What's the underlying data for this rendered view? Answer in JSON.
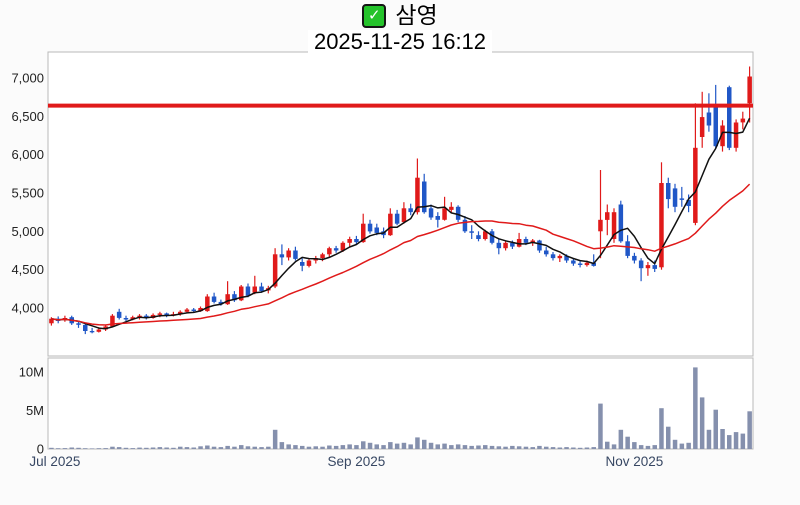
{
  "header": {
    "checkbox_glyph": "✓",
    "symbol": "삼영",
    "timestamp": "2025-11-25 16:12"
  },
  "chart_data": {
    "type": "candlestick",
    "title": "삼영",
    "subtitle": "2025-11-25 16:12",
    "legend": "none",
    "grid": false,
    "price_axis": {
      "min": 3600,
      "max": 7200
    },
    "price_ticks": [
      {
        "value": 7000,
        "label": "7,000"
      },
      {
        "value": 6500,
        "label": "6,500"
      },
      {
        "value": 6000,
        "label": "6,000"
      },
      {
        "value": 5500,
        "label": "5,500"
      },
      {
        "value": 5000,
        "label": "5,000"
      },
      {
        "value": 4500,
        "label": "4,500"
      },
      {
        "value": 4000,
        "label": "4,000"
      }
    ],
    "volume_axis": {
      "min": 0,
      "max": 11,
      "unit": "M"
    },
    "volume_ticks": [
      {
        "value": 10,
        "label": "10M"
      },
      {
        "value": 5,
        "label": "5M"
      },
      {
        "value": 0,
        "label": "0"
      }
    ],
    "x_ticks": [
      {
        "index": 0,
        "label": "Jul 2025",
        "align": "left"
      },
      {
        "index": 45,
        "label": "Sep 2025",
        "align": "center"
      },
      {
        "index": 86,
        "label": "Nov 2025",
        "align": "center"
      }
    ],
    "annotation_line": {
      "value": 6640,
      "color": "#e01a1a",
      "width": 4
    },
    "moving_averages": [
      {
        "name": "short-ma",
        "period": 5,
        "color": "#111111"
      },
      {
        "name": "long-ma",
        "period": 20,
        "color": "#e01a1a"
      }
    ],
    "colors": {
      "up": "#e01a1a",
      "down": "#2057c7",
      "volume": "#8590ad",
      "panel_border": "#b9b9b9",
      "panel_bg": "#ffffff"
    },
    "candle_format": [
      "open",
      "high",
      "low",
      "close",
      "volume_millions"
    ],
    "candles": [
      [
        3800,
        3880,
        3770,
        3860,
        0.15
      ],
      [
        3860,
        3890,
        3800,
        3830,
        0.1
      ],
      [
        3840,
        3900,
        3820,
        3870,
        0.12
      ],
      [
        3880,
        3900,
        3780,
        3800,
        0.2
      ],
      [
        3800,
        3830,
        3740,
        3780,
        0.15
      ],
      [
        3780,
        3800,
        3660,
        3700,
        0.1
      ],
      [
        3700,
        3740,
        3670,
        3690,
        0.08
      ],
      [
        3690,
        3750,
        3680,
        3720,
        0.1
      ],
      [
        3720,
        3780,
        3700,
        3760,
        0.12
      ],
      [
        3760,
        3920,
        3750,
        3900,
        0.3
      ],
      [
        3950,
        3990,
        3850,
        3870,
        0.25
      ],
      [
        3870,
        3900,
        3830,
        3850,
        0.15
      ],
      [
        3850,
        3900,
        3840,
        3880,
        0.12
      ],
      [
        3880,
        3920,
        3850,
        3900,
        0.18
      ],
      [
        3900,
        3920,
        3850,
        3870,
        0.15
      ],
      [
        3870,
        3930,
        3860,
        3910,
        0.2
      ],
      [
        3910,
        3950,
        3880,
        3930,
        0.25
      ],
      [
        3930,
        3940,
        3880,
        3900,
        0.2
      ],
      [
        3900,
        3950,
        3890,
        3920,
        0.15
      ],
      [
        3920,
        3970,
        3900,
        3950,
        0.3
      ],
      [
        3950,
        4000,
        3930,
        3980,
        0.25
      ],
      [
        3980,
        4000,
        3940,
        3960,
        0.2
      ],
      [
        3960,
        4020,
        3950,
        4000,
        0.35
      ],
      [
        3960,
        4180,
        3950,
        4150,
        0.45
      ],
      [
        4150,
        4200,
        4060,
        4080,
        0.3
      ],
      [
        4080,
        4110,
        4030,
        4050,
        0.25
      ],
      [
        4050,
        4350,
        4040,
        4180,
        0.4
      ],
      [
        4180,
        4220,
        4080,
        4100,
        0.3
      ],
      [
        4100,
        4300,
        4090,
        4280,
        0.5
      ],
      [
        4280,
        4320,
        4140,
        4160,
        0.35
      ],
      [
        4200,
        4420,
        4180,
        4280,
        0.3
      ],
      [
        4280,
        4330,
        4200,
        4220,
        0.25
      ],
      [
        4230,
        4290,
        4190,
        4260,
        0.3
      ],
      [
        4280,
        4780,
        4260,
        4700,
        2.5
      ],
      [
        4700,
        4830,
        4560,
        4660,
        0.9
      ],
      [
        4660,
        4780,
        4620,
        4750,
        0.6
      ],
      [
        4750,
        4800,
        4620,
        4640,
        0.5
      ],
      [
        4600,
        4650,
        4480,
        4550,
        0.4
      ],
      [
        4550,
        4650,
        4530,
        4620,
        0.3
      ],
      [
        4620,
        4680,
        4580,
        4650,
        0.35
      ],
      [
        4650,
        4720,
        4610,
        4700,
        0.3
      ],
      [
        4700,
        4800,
        4660,
        4780,
        0.45
      ],
      [
        4780,
        4810,
        4720,
        4750,
        0.4
      ],
      [
        4750,
        4870,
        4730,
        4850,
        0.5
      ],
      [
        4850,
        4930,
        4800,
        4900,
        0.6
      ],
      [
        4900,
        4940,
        4830,
        4860,
        0.5
      ],
      [
        4860,
        5230,
        4850,
        5100,
        1.0
      ],
      [
        5100,
        5150,
        4970,
        5000,
        0.8
      ],
      [
        5050,
        5100,
        4950,
        4980,
        0.6
      ],
      [
        5000,
        5050,
        4910,
        4950,
        0.5
      ],
      [
        4950,
        5300,
        4940,
        5230,
        0.9
      ],
      [
        5230,
        5280,
        5080,
        5100,
        0.7
      ],
      [
        5120,
        5380,
        5100,
        5300,
        0.8
      ],
      [
        5300,
        5360,
        5210,
        5250,
        0.6
      ],
      [
        5250,
        5950,
        5220,
        5700,
        1.5
      ],
      [
        5650,
        5750,
        5230,
        5250,
        1.2
      ],
      [
        5300,
        5350,
        5150,
        5180,
        0.8
      ],
      [
        5200,
        5250,
        5050,
        5150,
        0.6
      ],
      [
        5150,
        5450,
        5140,
        5300,
        0.7
      ],
      [
        5280,
        5380,
        5240,
        5320,
        0.5
      ],
      [
        5320,
        5340,
        5120,
        5150,
        0.6
      ],
      [
        5150,
        5200,
        4980,
        5000,
        0.5
      ],
      [
        5000,
        5080,
        4900,
        4980,
        0.4
      ],
      [
        4950,
        5000,
        4870,
        4900,
        0.45
      ],
      [
        4900,
        5020,
        4880,
        5000,
        0.5
      ],
      [
        5000,
        5030,
        4830,
        4850,
        0.4
      ],
      [
        4850,
        4900,
        4700,
        4780,
        0.35
      ],
      [
        4780,
        4870,
        4750,
        4850,
        0.3
      ],
      [
        4850,
        4880,
        4770,
        4800,
        0.4
      ],
      [
        4800,
        4980,
        4790,
        4900,
        0.35
      ],
      [
        4900,
        4930,
        4820,
        4850,
        0.3
      ],
      [
        4850,
        4900,
        4810,
        4880,
        0.25
      ],
      [
        4880,
        4890,
        4720,
        4750,
        0.4
      ],
      [
        4750,
        4800,
        4670,
        4700,
        0.3
      ],
      [
        4700,
        4730,
        4620,
        4650,
        0.25
      ],
      [
        4650,
        4700,
        4600,
        4680,
        0.2
      ],
      [
        4680,
        4700,
        4590,
        4620,
        0.25
      ],
      [
        4620,
        4650,
        4550,
        4580,
        0.2
      ],
      [
        4580,
        4610,
        4530,
        4560,
        0.15
      ],
      [
        4560,
        4620,
        4540,
        4590,
        0.2
      ],
      [
        4590,
        4700,
        4540,
        4550,
        0.25
      ],
      [
        5000,
        5800,
        4650,
        5150,
        5.9
      ],
      [
        5150,
        5350,
        4950,
        5250,
        0.95
      ],
      [
        4900,
        5300,
        4850,
        5250,
        0.6
      ],
      [
        5350,
        5400,
        4850,
        4870,
        2.5
      ],
      [
        4870,
        4950,
        4650,
        4680,
        1.6
      ],
      [
        4680,
        4720,
        4580,
        4620,
        0.9
      ],
      [
        4620,
        4650,
        4350,
        4520,
        0.5
      ],
      [
        4520,
        4600,
        4420,
        4560,
        0.4
      ],
      [
        4560,
        4620,
        4470,
        4510,
        0.5
      ],
      [
        4530,
        5900,
        4500,
        5630,
        5.3
      ],
      [
        5630,
        5700,
        5300,
        5420,
        2.9
      ],
      [
        5560,
        5620,
        5250,
        5320,
        1.2
      ],
      [
        5430,
        5580,
        5320,
        5410,
        0.7
      ],
      [
        5410,
        5480,
        5250,
        5330,
        0.8
      ],
      [
        5110,
        6670,
        5080,
        6090,
        10.6
      ],
      [
        6230,
        6820,
        6090,
        6490,
        6.7
      ],
      [
        6550,
        6800,
        6300,
        6380,
        2.5
      ],
      [
        6620,
        6910,
        6080,
        6110,
        5.1
      ],
      [
        6110,
        6450,
        6040,
        6380,
        2.6
      ],
      [
        6880,
        6900,
        6060,
        6090,
        1.8
      ],
      [
        6090,
        6460,
        6040,
        6420,
        2.2
      ],
      [
        6420,
        6560,
        6330,
        6470,
        2.0
      ],
      [
        6670,
        7150,
        6420,
        7020,
        4.9
      ]
    ]
  }
}
